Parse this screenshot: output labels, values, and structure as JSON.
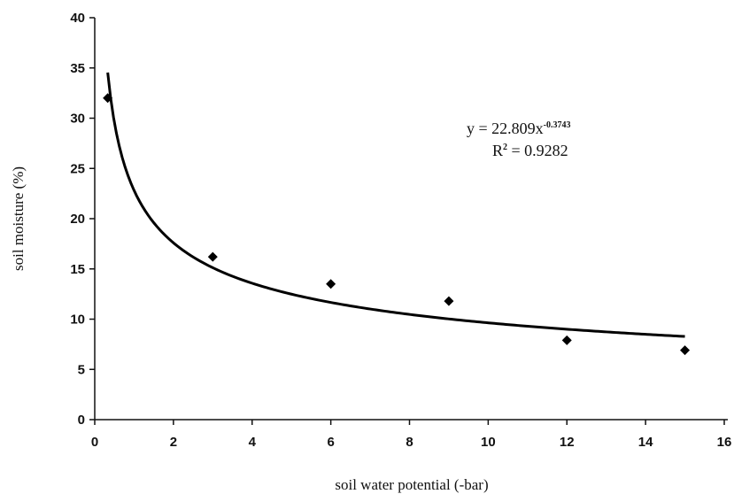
{
  "chart_data": {
    "type": "scatter",
    "title": "",
    "xlabel": "soil water potential (-bar)",
    "ylabel": "soil moisture (%)",
    "xlim": [
      0,
      16
    ],
    "ylim": [
      0,
      40
    ],
    "x_ticks": [
      0,
      2,
      4,
      6,
      8,
      10,
      12,
      14,
      16
    ],
    "y_ticks": [
      0,
      5,
      10,
      15,
      20,
      25,
      30,
      35,
      40
    ],
    "x_tick_labels": [
      "0",
      "2",
      "4",
      "6",
      "8",
      "10",
      "12",
      "14",
      "16"
    ],
    "y_tick_labels": [
      "0",
      "5",
      "10",
      "15",
      "20",
      "25",
      "30",
      "35",
      "40"
    ],
    "grid": false,
    "legend": "none",
    "series": [
      {
        "points": [
          {
            "x": 0.33,
            "y": 32.0
          },
          {
            "x": 3.0,
            "y": 16.2
          },
          {
            "x": 6.0,
            "y": 13.5
          },
          {
            "x": 9.0,
            "y": 11.8
          },
          {
            "x": 12.0,
            "y": 7.9
          },
          {
            "x": 15.0,
            "y": 6.9
          }
        ],
        "marker": "diamond",
        "color": "#000000"
      }
    ],
    "trendline": {
      "type": "power",
      "a": 22.809,
      "b": -0.3743,
      "x_range": [
        0.33,
        15.0
      ],
      "color": "#000000"
    },
    "annotations": {
      "equation_base": "y = 22.809x",
      "equation_exponent": "-0.3743",
      "r_squared_base": "R",
      "r_squared_exponent": "2",
      "r_squared_value": " = 0.9282"
    }
  }
}
